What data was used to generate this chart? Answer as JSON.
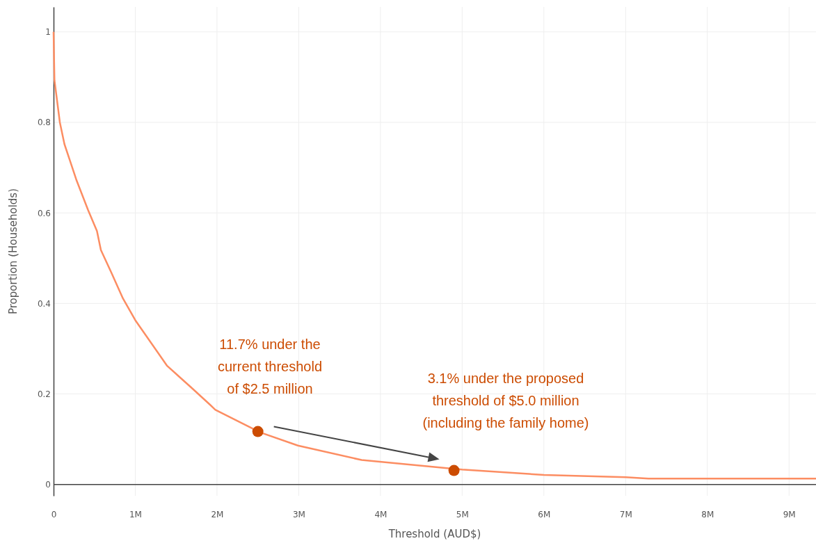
{
  "chart_data": {
    "type": "line",
    "xlabel": "Threshold (AUD$)",
    "ylabel": "Proportion (Households)",
    "xlim": [
      0,
      9330000
    ],
    "ylim": [
      -0.025,
      1.055
    ],
    "xticks": [
      0,
      {
        "value": 1000000,
        "label": "1M"
      },
      {
        "value": 2000000,
        "label": "2M"
      },
      {
        "value": 3000000,
        "label": "3M"
      },
      {
        "value": 4000000,
        "label": "4M"
      },
      {
        "value": 5000000,
        "label": "5M"
      },
      {
        "value": 6000000,
        "label": "6M"
      },
      {
        "value": 7000000,
        "label": "7M"
      },
      {
        "value": 8000000,
        "label": "8M"
      },
      {
        "value": 9000000,
        "label": "9M"
      }
    ],
    "yticks": [
      0,
      0.2,
      0.4,
      0.6,
      0.8,
      1
    ],
    "grid": true,
    "series": [
      {
        "color": "#fc8d62",
        "marker": "none",
        "x": [
          0,
          11000,
          77000,
          133000,
          196000,
          281000,
          423000,
          531000,
          579000,
          707000,
          849000,
          1000000,
          1390000,
          1680000,
          1910000,
          1980000,
          2530000,
          2990000,
          3770000,
          4880000,
          5000000,
          6000000,
          7000000,
          7280000,
          8000000,
          9330000
        ],
        "values": [
          1,
          0.893,
          0.8,
          0.752,
          0.718,
          0.672,
          0.606,
          0.56,
          0.518,
          0.468,
          0.411,
          0.363,
          0.262,
          0.215,
          0.177,
          0.165,
          0.115,
          0.086,
          0.054,
          0.035,
          0.033,
          0.021,
          0.016,
          0.013,
          0.013,
          0.013
        ]
      },
      {
        "type": "scatter",
        "color": "#cc4c02",
        "marker": "circle",
        "x": [
          2500000,
          4900000
        ],
        "values": [
          0.117,
          0.031
        ]
      }
    ],
    "annotations": [
      "11.7% under the\ncurrent threshold\nof $2.5 million",
      "3.1% under the proposed\nthreshold of $5.0 million\n(including the family home)"
    ]
  }
}
